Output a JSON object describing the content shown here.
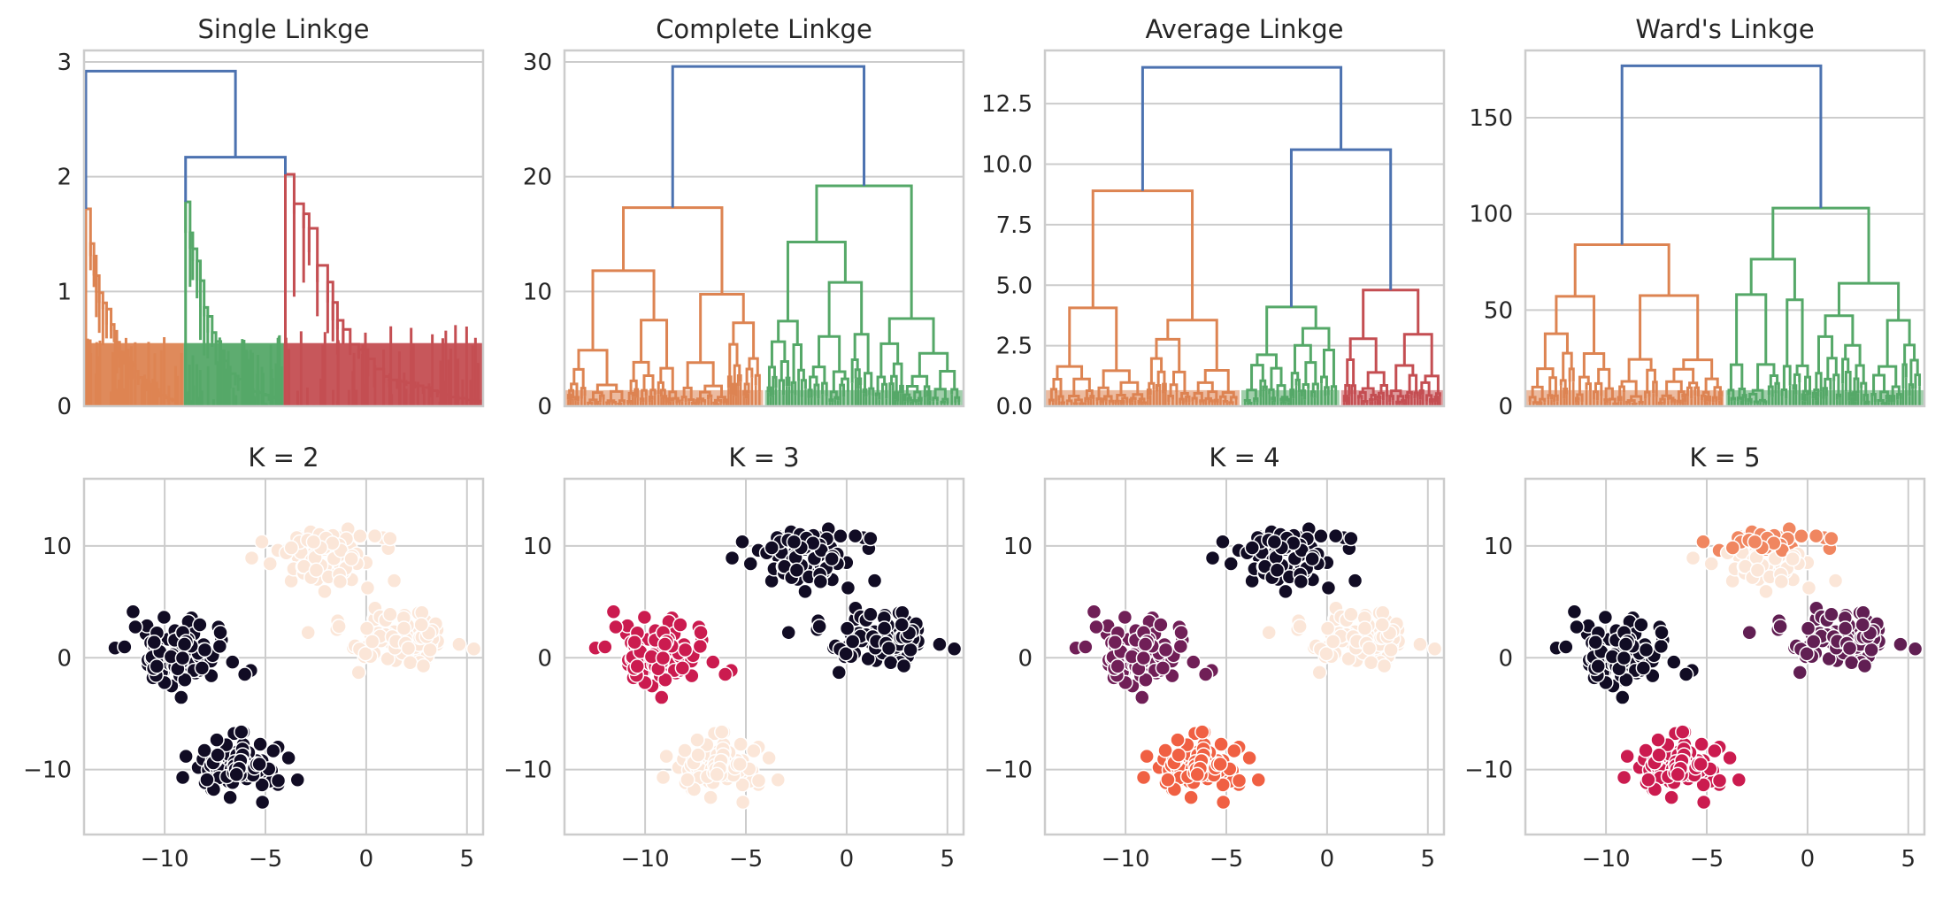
{
  "chart_data": [
    {
      "type": "dendrogram",
      "title": "Single Linkge",
      "ylim": [
        0,
        3.1
      ],
      "yticks": [
        "0",
        "1",
        "2",
        "3"
      ],
      "ytick_values": [
        0,
        1,
        2,
        3
      ],
      "grid": true,
      "colors": [
        "#dd8452",
        "#55a868",
        "#c44e52"
      ],
      "root_color": "#4c72b0",
      "root_merges": [
        {
          "height": 2.92,
          "left": "cluster-orange",
          "right": "merge-2.17"
        },
        {
          "height": 2.17,
          "left": "cluster-green",
          "right": "cluster-red"
        }
      ],
      "clusters": [
        {
          "color": "#dd8452",
          "top": 1.72
        },
        {
          "color": "#55a868",
          "top": 1.78
        },
        {
          "color": "#c44e52",
          "top": 2.02
        }
      ]
    },
    {
      "type": "dendrogram",
      "title": "Complete Linkge",
      "ylim": [
        0,
        31
      ],
      "yticks": [
        "0",
        "10",
        "20",
        "30"
      ],
      "ytick_values": [
        0,
        10,
        20,
        30
      ],
      "grid": true,
      "colors": [
        "#dd8452",
        "#55a868"
      ],
      "root_color": "#4c72b0",
      "root_merges": [
        {
          "height": 29.6,
          "left": "cluster-orange",
          "right": "cluster-green"
        }
      ],
      "clusters": [
        {
          "color": "#dd8452",
          "top": 17.3
        },
        {
          "color": "#55a868",
          "top": 19.2
        }
      ]
    },
    {
      "type": "dendrogram",
      "title": "Average Linkge",
      "ylim": [
        0,
        14.7
      ],
      "yticks": [
        "0.0",
        "2.5",
        "5.0",
        "7.5",
        "10.0",
        "12.5"
      ],
      "ytick_values": [
        0,
        2.5,
        5,
        7.5,
        10,
        12.5
      ],
      "grid": true,
      "colors": [
        "#dd8452",
        "#55a868",
        "#c44e52"
      ],
      "root_color": "#4c72b0",
      "root_merges": [
        {
          "height": 14.0,
          "left": "cluster-orange",
          "right": "merge-10.6"
        },
        {
          "height": 10.6,
          "left": "cluster-green",
          "right": "cluster-red"
        }
      ],
      "clusters": [
        {
          "color": "#dd8452",
          "top": 8.9
        },
        {
          "color": "#55a868",
          "top": 4.1
        },
        {
          "color": "#c44e52",
          "top": 4.8
        }
      ]
    },
    {
      "type": "dendrogram",
      "title": "Ward's Linkge",
      "ylim": [
        0,
        185
      ],
      "yticks": [
        "0",
        "50",
        "100",
        "150"
      ],
      "ytick_values": [
        0,
        50,
        100,
        150
      ],
      "grid": true,
      "colors": [
        "#dd8452",
        "#55a868"
      ],
      "root_color": "#4c72b0",
      "root_merges": [
        {
          "height": 177,
          "left": "cluster-orange",
          "right": "cluster-green"
        }
      ],
      "clusters": [
        {
          "color": "#dd8452",
          "top": 84
        },
        {
          "color": "#55a868",
          "top": 103
        }
      ]
    },
    {
      "type": "scatter",
      "title": "K = 2",
      "xlim": [
        -14,
        5.8
      ],
      "ylim": [
        -15.8,
        16
      ],
      "xticks": [
        "−10",
        "−5",
        "0",
        "5"
      ],
      "xtick_values": [
        -10,
        -5,
        0,
        5
      ],
      "yticks": [
        "−10",
        "0",
        "10"
      ],
      "ytick_values": [
        -10,
        0,
        10
      ],
      "grid": true,
      "groups": [
        {
          "center": [
            -9.3,
            0.2
          ],
          "spread": [
            1.7,
            1.7
          ],
          "n": 100
        },
        {
          "center": [
            -6.4,
            -9.6
          ],
          "spread": [
            1.5,
            1.6
          ],
          "n": 100
        },
        {
          "center": [
            -2.0,
            9.2
          ],
          "spread": [
            1.9,
            1.8
          ],
          "n": 100
        },
        {
          "center": [
            2.0,
            1.8
          ],
          "spread": [
            1.6,
            1.6
          ],
          "n": 100
        }
      ],
      "group_colors": [
        "#0d0887",
        "#0d0887",
        "#fbe6d8",
        "#fbe6d8"
      ],
      "cluster_colors": [
        "#110c24",
        "#110c24",
        "#fbe6d8",
        "#fbe6d8"
      ]
    },
    {
      "type": "scatter",
      "title": "K = 3",
      "xlim": [
        -14,
        5.8
      ],
      "ylim": [
        -15.8,
        16
      ],
      "xticks": [
        "−10",
        "−5",
        "0",
        "5"
      ],
      "xtick_values": [
        -10,
        -5,
        0,
        5
      ],
      "yticks": [
        "−10",
        "0",
        "10"
      ],
      "ytick_values": [
        -10,
        0,
        10
      ],
      "grid": true,
      "groups": [
        {
          "center": [
            -9.3,
            0.2
          ],
          "spread": [
            1.7,
            1.7
          ],
          "n": 100
        },
        {
          "center": [
            -6.4,
            -9.6
          ],
          "spread": [
            1.5,
            1.6
          ],
          "n": 100
        },
        {
          "center": [
            -2.0,
            9.2
          ],
          "spread": [
            1.9,
            1.8
          ],
          "n": 100
        },
        {
          "center": [
            2.0,
            1.8
          ],
          "spread": [
            1.6,
            1.6
          ],
          "n": 100
        }
      ],
      "cluster_colors": [
        "#cb1b4f",
        "#fbe6d8",
        "#110c24",
        "#110c24"
      ]
    },
    {
      "type": "scatter",
      "title": "K = 4",
      "xlim": [
        -14,
        5.8
      ],
      "ylim": [
        -15.8,
        16
      ],
      "xticks": [
        "−10",
        "−5",
        "0",
        "5"
      ],
      "xtick_values": [
        -10,
        -5,
        0,
        5
      ],
      "yticks": [
        "−10",
        "0",
        "10"
      ],
      "ytick_values": [
        -10,
        0,
        10
      ],
      "grid": true,
      "groups": [
        {
          "center": [
            -9.3,
            0.2
          ],
          "spread": [
            1.7,
            1.7
          ],
          "n": 100
        },
        {
          "center": [
            -6.4,
            -9.6
          ],
          "spread": [
            1.5,
            1.6
          ],
          "n": 100
        },
        {
          "center": [
            -2.0,
            9.2
          ],
          "spread": [
            1.9,
            1.8
          ],
          "n": 100
        },
        {
          "center": [
            2.0,
            1.8
          ],
          "spread": [
            1.6,
            1.6
          ],
          "n": 100
        }
      ],
      "cluster_colors": [
        "#701f57",
        "#f06043",
        "#110c24",
        "#fbe6d8"
      ]
    },
    {
      "type": "scatter",
      "title": "K = 5",
      "xlim": [
        -14,
        5.8
      ],
      "ylim": [
        -15.8,
        16
      ],
      "xticks": [
        "−10",
        "−5",
        "0",
        "5"
      ],
      "xtick_values": [
        -10,
        -5,
        0,
        5
      ],
      "yticks": [
        "−10",
        "0",
        "10"
      ],
      "ytick_values": [
        -10,
        0,
        10
      ],
      "grid": true,
      "groups": [
        {
          "center": [
            -9.3,
            0.2
          ],
          "spread": [
            1.7,
            1.7
          ],
          "n": 100
        },
        {
          "center": [
            -6.4,
            -9.6
          ],
          "spread": [
            1.5,
            1.6
          ],
          "n": 100
        },
        {
          "center": [
            -2.0,
            9.2
          ],
          "spread": [
            1.9,
            1.8
          ],
          "n": 100
        },
        {
          "center": [
            2.0,
            1.8
          ],
          "spread": [
            1.6,
            1.6
          ],
          "n": 100
        }
      ],
      "cluster_colors": [
        "#110c24",
        "#cb1b4f",
        "#f6a47c",
        "#611f53"
      ],
      "split_group": {
        "index": 2,
        "y_above": 9.5,
        "color_above": "#f08660",
        "color_below": "#fbe6d8"
      }
    }
  ]
}
